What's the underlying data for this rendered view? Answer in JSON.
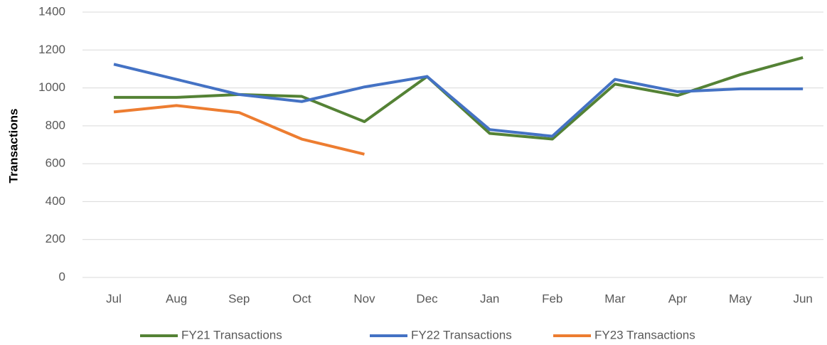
{
  "chart_data": {
    "type": "line",
    "y_label": "Transactions",
    "categories": [
      "Jul",
      "Aug",
      "Sep",
      "Oct",
      "Nov",
      "Dec",
      "Jan",
      "Feb",
      "Mar",
      "Apr",
      "May",
      "Jun"
    ],
    "series": [
      {
        "name": "FY21 Transactions",
        "color": "#548235",
        "values": [
          950,
          950,
          965,
          955,
          822,
          1060,
          760,
          730,
          1020,
          960,
          1070,
          1160
        ]
      },
      {
        "name": "FY22 Transactions",
        "color": "#4472c4",
        "values": [
          1125,
          1045,
          965,
          928,
          1005,
          1060,
          780,
          745,
          1045,
          980,
          995,
          995
        ]
      },
      {
        "name": "FY23 Transactions",
        "color": "#ed7d31",
        "values": [
          873,
          907,
          870,
          730,
          650,
          null,
          null,
          null,
          null,
          null,
          null,
          null
        ]
      }
    ],
    "ylim": [
      0,
      1400
    ],
    "yticks": [
      0,
      200,
      400,
      600,
      800,
      1000,
      1200,
      1400
    ],
    "grid": true,
    "legend": "bottom"
  }
}
